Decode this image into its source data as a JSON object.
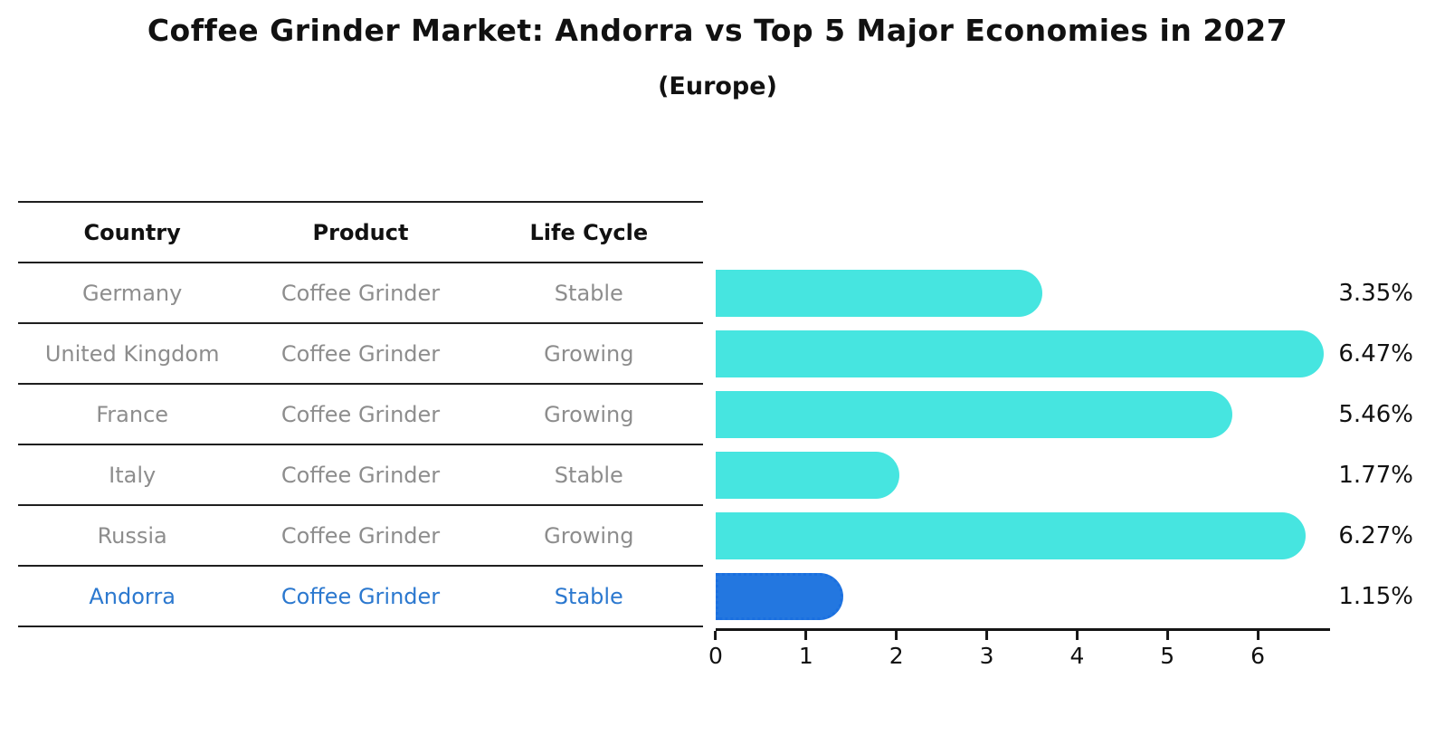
{
  "title": "Coffee Grinder Market: Andorra vs Top 5 Major Economies in 2027",
  "subtitle": "(Europe)",
  "table": {
    "headers": [
      "Country",
      "Product",
      "Life Cycle"
    ],
    "rows": [
      {
        "country": "Germany",
        "product": "Coffee Grinder",
        "life_cycle": "Stable",
        "value_label": "3.35%",
        "highlight": false
      },
      {
        "country": "United Kingdom",
        "product": "Coffee Grinder",
        "life_cycle": "Growing",
        "value_label": "6.47%",
        "highlight": false
      },
      {
        "country": "France",
        "product": "Coffee Grinder",
        "life_cycle": "Growing",
        "value_label": "5.46%",
        "highlight": false
      },
      {
        "country": "Italy",
        "product": "Coffee Grinder",
        "life_cycle": "Stable",
        "value_label": "1.77%",
        "highlight": false
      },
      {
        "country": "Russia",
        "product": "Coffee Grinder",
        "life_cycle": "Growing",
        "value_label": "6.27%",
        "highlight": false
      },
      {
        "country": "Andorra",
        "product": "Coffee Grinder",
        "life_cycle": "Stable",
        "value_label": "1.15%",
        "highlight": true
      }
    ]
  },
  "chart_data": {
    "type": "bar",
    "orientation": "horizontal",
    "title": "Coffee Grinder Market: Andorra vs Top 5 Major Economies in 2027 (Europe)",
    "categories": [
      "Germany",
      "United Kingdom",
      "France",
      "Italy",
      "Russia",
      "Andorra"
    ],
    "values": [
      3.35,
      6.47,
      5.46,
      1.77,
      6.27,
      1.15
    ],
    "value_labels": [
      "3.35%",
      "6.47%",
      "5.46%",
      "1.77%",
      "6.27%",
      "1.15%"
    ],
    "xlabel": "",
    "ylabel": "",
    "xlim": [
      0,
      6.8
    ],
    "xticks": [
      0,
      1,
      2,
      3,
      4,
      5,
      6
    ],
    "grid": false,
    "legend": false,
    "highlight_index": 5
  },
  "colors": {
    "bar_color": "#46E5E0",
    "highlight_bar": "#2377E0",
    "highlight_border": "#1a6fe0",
    "highlight_text": "#2b78cf",
    "text_gray": "#8d8d8d",
    "line_color": "#1f1f1f"
  }
}
